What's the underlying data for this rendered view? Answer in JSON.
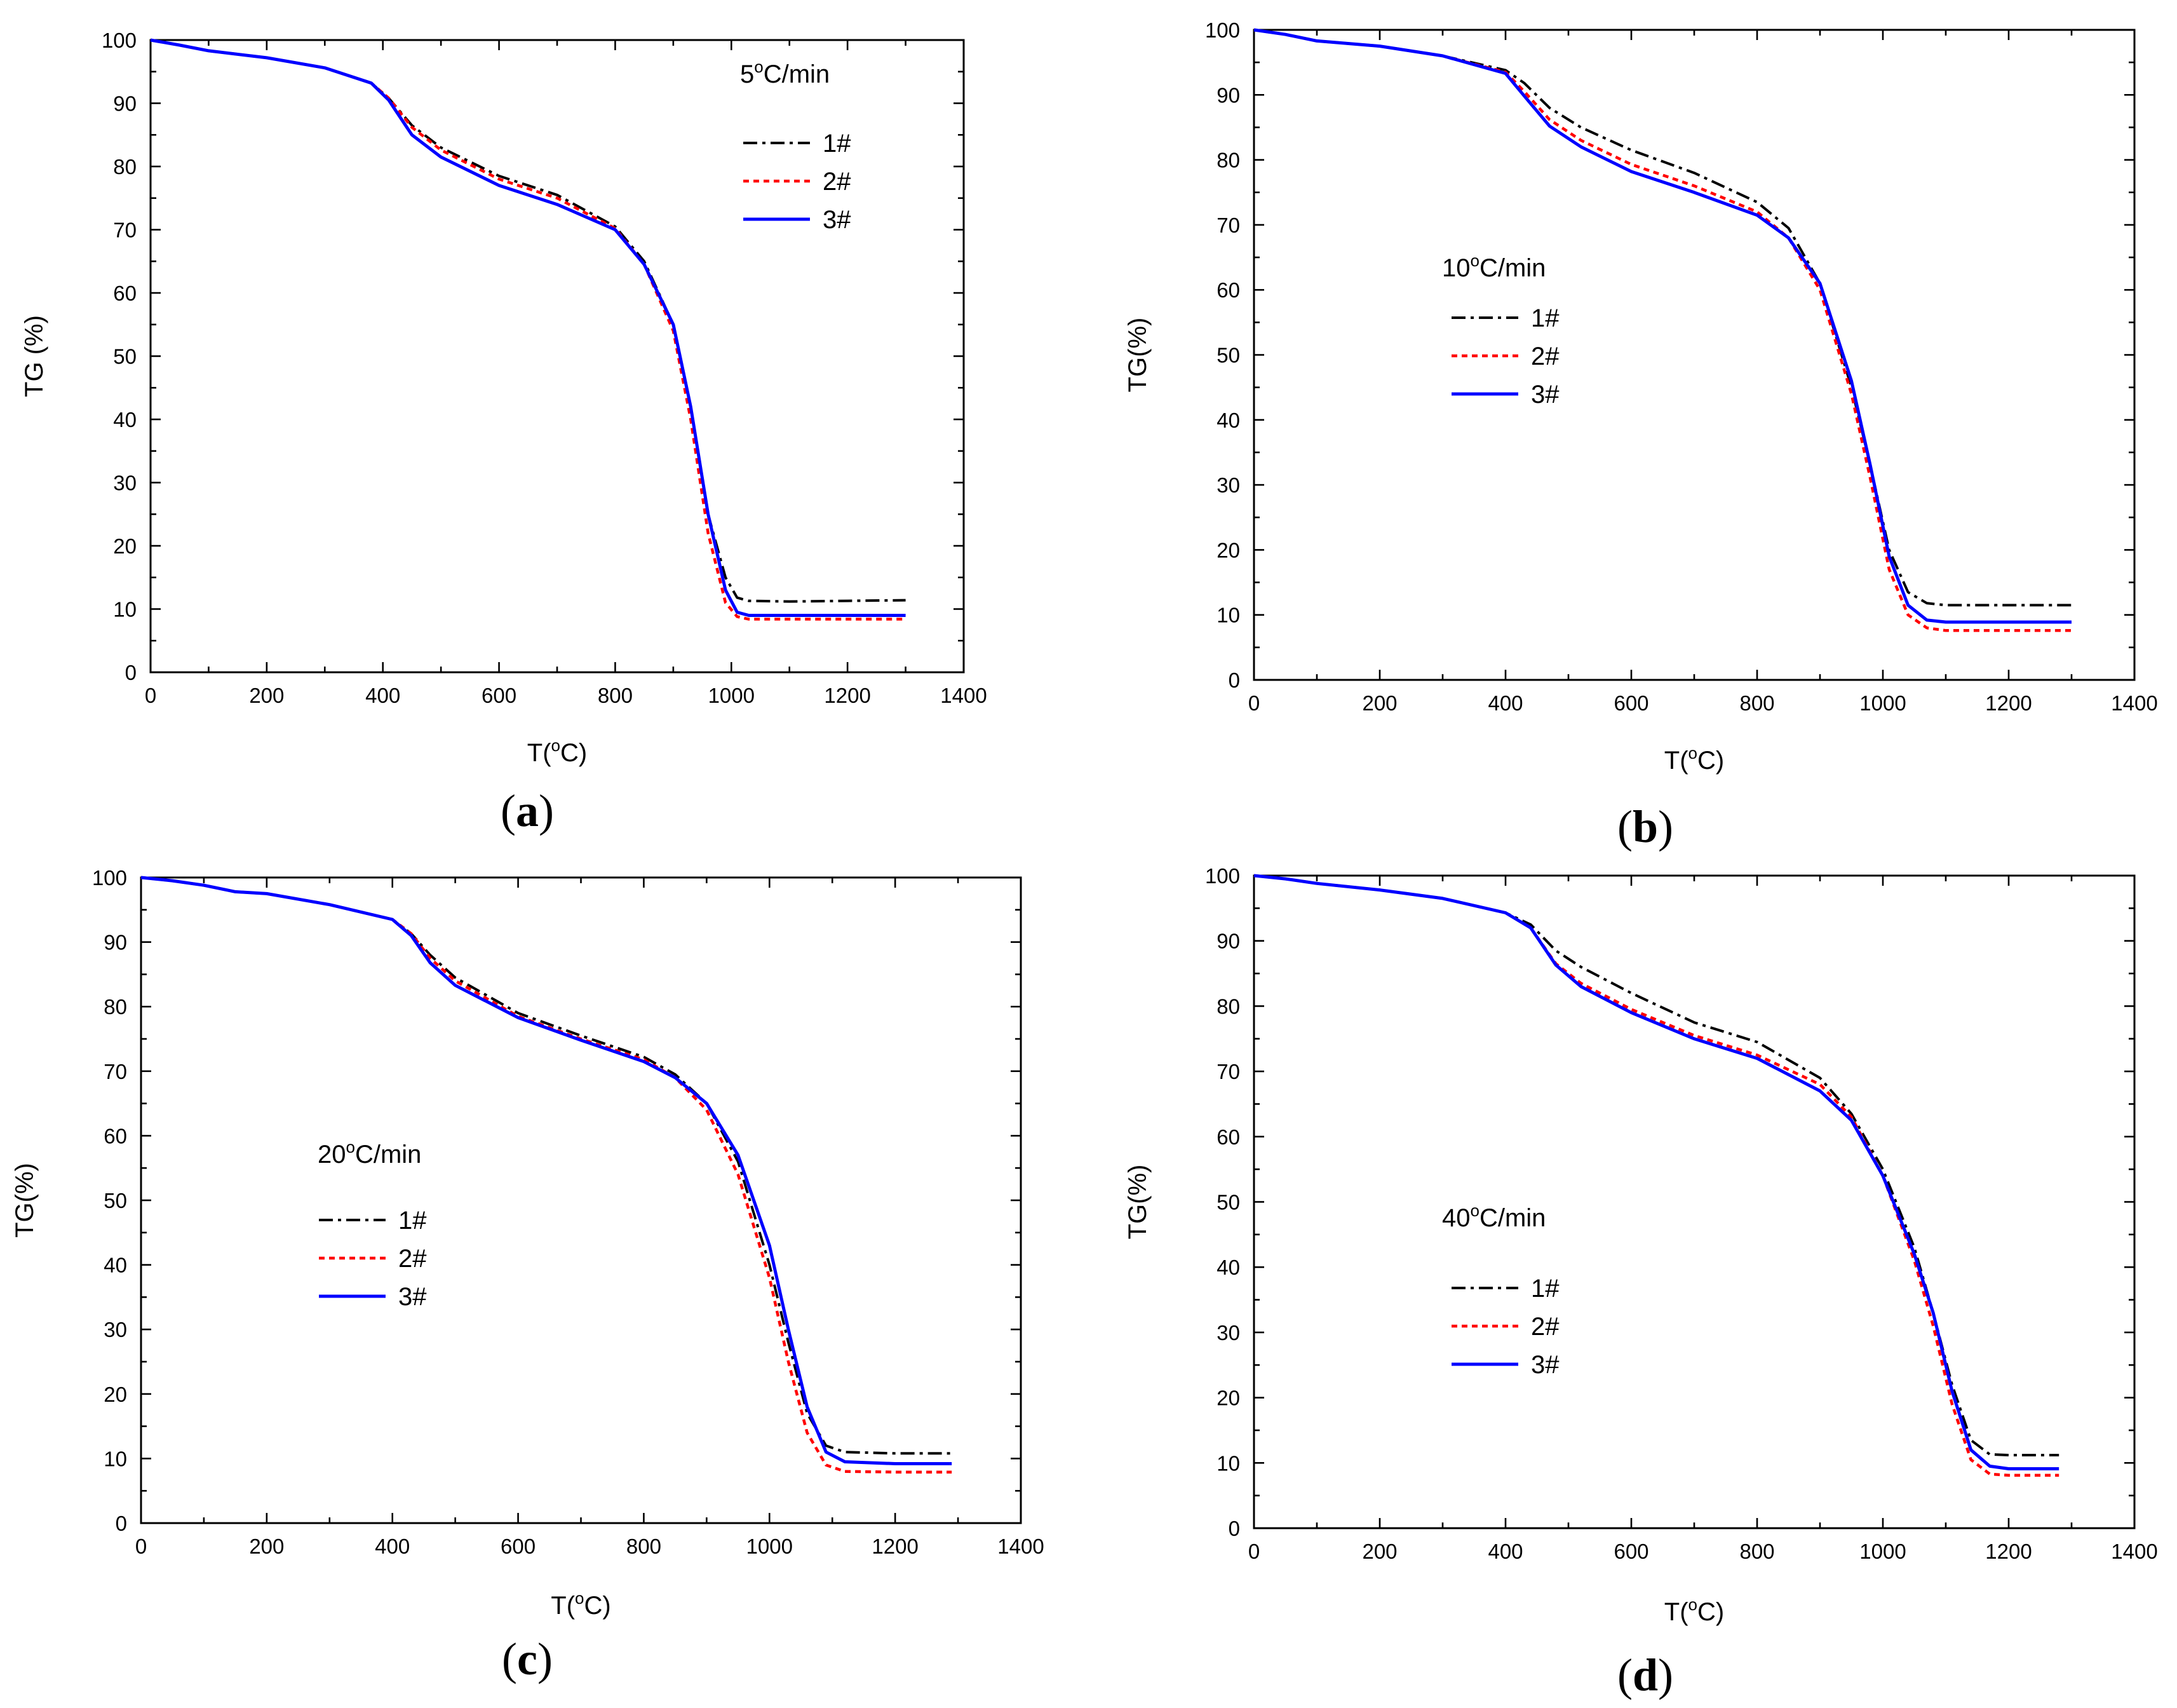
{
  "figure": {
    "axis_unit_label": "°C",
    "colors": {
      "1#": "#000000",
      "2#": "#ff0000",
      "3#": "#0000ff"
    }
  },
  "chart_data": [
    {
      "type": "line",
      "panel_label": "a",
      "annotation": "5°C/min",
      "annotation_parts": [
        "5",
        "o",
        "C/min"
      ],
      "xlabel": "T(°C)",
      "xlabel_parts": [
        "T(",
        "o",
        "C)"
      ],
      "ylabel": "TG (%)",
      "xlim": [
        0,
        1400
      ],
      "ylim": [
        0,
        100
      ],
      "xticks": [
        0,
        200,
        400,
        600,
        800,
        1000,
        1200,
        1400
      ],
      "yticks": [
        0,
        10,
        20,
        30,
        40,
        50,
        60,
        70,
        80,
        90,
        100
      ],
      "legend": [
        "1#",
        "2#",
        "3#"
      ],
      "legend_position": "upper-right",
      "series": [
        {
          "name": "1#",
          "style": "dash-dot",
          "color": "#000000",
          "x": [
            0,
            50,
            100,
            200,
            300,
            380,
            410,
            450,
            500,
            600,
            700,
            800,
            850,
            900,
            930,
            960,
            990,
            1010,
            1030,
            1100,
            1200,
            1300
          ],
          "y": [
            100,
            99.2,
            98.3,
            97.2,
            95.6,
            93.2,
            90.8,
            86.5,
            83,
            78.5,
            75.5,
            70.5,
            65,
            55,
            42,
            25,
            15,
            11.8,
            11.3,
            11.2,
            11.3,
            11.4
          ]
        },
        {
          "name": "2#",
          "style": "dotted",
          "color": "#ff0000",
          "x": [
            0,
            50,
            100,
            200,
            300,
            380,
            410,
            450,
            500,
            600,
            700,
            800,
            850,
            900,
            930,
            960,
            990,
            1010,
            1030,
            1100,
            1200,
            1300
          ],
          "y": [
            100,
            99.2,
            98.3,
            97.2,
            95.6,
            93.2,
            90.8,
            86.2,
            82.6,
            78,
            75,
            70.2,
            64.5,
            54,
            40,
            22,
            11,
            8.8,
            8.4,
            8.4,
            8.4,
            8.4
          ]
        },
        {
          "name": "3#",
          "style": "solid",
          "color": "#0000ff",
          "x": [
            0,
            50,
            100,
            200,
            300,
            380,
            410,
            450,
            500,
            600,
            700,
            800,
            850,
            900,
            930,
            960,
            990,
            1010,
            1030,
            1100,
            1200,
            1300
          ],
          "y": [
            100,
            99.2,
            98.3,
            97.2,
            95.6,
            93.2,
            90.5,
            85,
            81.5,
            77,
            74,
            70,
            64.5,
            55,
            42,
            25,
            13,
            9.5,
            9,
            9,
            9,
            9
          ]
        }
      ]
    },
    {
      "type": "line",
      "panel_label": "b",
      "annotation": "10°C/min",
      "annotation_parts": [
        "10",
        "o",
        "C/min"
      ],
      "xlabel": "T(°C)",
      "xlabel_parts": [
        "T(",
        "o",
        "C)"
      ],
      "ylabel": "TG(%)",
      "xlim": [
        0,
        1400
      ],
      "ylim": [
        0,
        100
      ],
      "xticks": [
        0,
        200,
        400,
        600,
        800,
        1000,
        1200,
        1400
      ],
      "yticks": [
        0,
        10,
        20,
        30,
        40,
        50,
        60,
        70,
        80,
        90,
        100
      ],
      "legend": [
        "1#",
        "2#",
        "3#"
      ],
      "legend_position": "center-left",
      "series": [
        {
          "name": "1#",
          "style": "dash-dot",
          "color": "#000000",
          "x": [
            0,
            50,
            100,
            200,
            300,
            400,
            430,
            470,
            520,
            600,
            700,
            800,
            850,
            900,
            950,
            980,
            1010,
            1040,
            1070,
            1100,
            1200,
            1300
          ],
          "y": [
            100,
            99.3,
            98.3,
            97.5,
            96,
            93.8,
            91.8,
            88,
            85,
            81.5,
            78,
            73.5,
            69.5,
            61,
            45,
            33,
            20,
            13.5,
            11.8,
            11.5,
            11.5,
            11.5
          ]
        },
        {
          "name": "2#",
          "style": "dotted",
          "color": "#ff0000",
          "x": [
            0,
            50,
            100,
            200,
            300,
            400,
            430,
            470,
            520,
            600,
            700,
            800,
            850,
            900,
            950,
            980,
            1010,
            1040,
            1070,
            1100,
            1200,
            1300
          ],
          "y": [
            100,
            99.3,
            98.3,
            97.5,
            96,
            93.5,
            90.5,
            86.2,
            83,
            79.3,
            76,
            72,
            68,
            60,
            44,
            31,
            17,
            10,
            8,
            7.6,
            7.6,
            7.6
          ]
        },
        {
          "name": "3#",
          "style": "solid",
          "color": "#0000ff",
          "x": [
            0,
            50,
            100,
            200,
            300,
            400,
            430,
            470,
            520,
            600,
            700,
            800,
            850,
            900,
            950,
            980,
            1010,
            1040,
            1070,
            1100,
            1200,
            1300
          ],
          "y": [
            100,
            99.3,
            98.3,
            97.5,
            96,
            93.3,
            89.8,
            85.2,
            82,
            78.2,
            75,
            71.5,
            68,
            61,
            46,
            33,
            19,
            11.5,
            9.2,
            8.9,
            8.9,
            8.9
          ]
        }
      ]
    },
    {
      "type": "line",
      "panel_label": "c",
      "annotation": "20°C/min",
      "annotation_parts": [
        "20",
        "o",
        "C/min"
      ],
      "xlabel": "T(°C)",
      "xlabel_parts": [
        "T(",
        "o",
        "C)"
      ],
      "ylabel": "TG(%)",
      "xlim": [
        0,
        1400
      ],
      "ylim": [
        0,
        100
      ],
      "xticks": [
        0,
        200,
        400,
        600,
        800,
        1000,
        1200,
        1400
      ],
      "yticks": [
        0,
        10,
        20,
        30,
        40,
        50,
        60,
        70,
        80,
        90,
        100
      ],
      "legend": [
        "1#",
        "2#",
        "3#"
      ],
      "legend_position": "center-left",
      "series": [
        {
          "name": "1#",
          "style": "dash-dot",
          "color": "#000000",
          "x": [
            0,
            50,
            100,
            150,
            200,
            300,
            400,
            430,
            460,
            500,
            600,
            700,
            800,
            850,
            900,
            950,
            1000,
            1030,
            1060,
            1090,
            1120,
            1200,
            1290
          ],
          "y": [
            100,
            99.5,
            98.8,
            97.8,
            97.5,
            95.8,
            93.5,
            91.3,
            88,
            84.5,
            79,
            75.5,
            72.2,
            69.5,
            65,
            56,
            40,
            28,
            17,
            12,
            11,
            10.8,
            10.8
          ]
        },
        {
          "name": "2#",
          "style": "dotted",
          "color": "#ff0000",
          "x": [
            0,
            50,
            100,
            150,
            200,
            300,
            400,
            430,
            460,
            500,
            600,
            700,
            800,
            850,
            900,
            950,
            1000,
            1030,
            1060,
            1090,
            1120,
            1200,
            1290
          ],
          "y": [
            100,
            99.5,
            98.8,
            97.8,
            97.5,
            95.8,
            93.5,
            91.3,
            87.5,
            84,
            78.5,
            75,
            71.8,
            69,
            64,
            54,
            38,
            25,
            14,
            9,
            8,
            7.9,
            7.9
          ]
        },
        {
          "name": "3#",
          "style": "solid",
          "color": "#0000ff",
          "x": [
            0,
            50,
            100,
            150,
            200,
            300,
            400,
            430,
            460,
            500,
            600,
            700,
            800,
            850,
            900,
            950,
            1000,
            1030,
            1060,
            1090,
            1120,
            1200,
            1290
          ],
          "y": [
            100,
            99.5,
            98.8,
            97.8,
            97.5,
            95.8,
            93.5,
            91,
            86.8,
            83.3,
            78.3,
            74.8,
            71.5,
            69,
            65,
            57,
            43,
            30,
            18,
            11,
            9.5,
            9.2,
            9.2
          ]
        }
      ]
    },
    {
      "type": "line",
      "panel_label": "d",
      "annotation": "40°C/min",
      "annotation_parts": [
        "40",
        "o",
        "C/min"
      ],
      "xlabel": "T(°C)",
      "xlabel_parts": [
        "T(",
        "o",
        "C)"
      ],
      "ylabel": "TG(%)",
      "xlim": [
        0,
        1400
      ],
      "ylim": [
        0,
        100
      ],
      "xticks": [
        0,
        200,
        400,
        600,
        800,
        1000,
        1200,
        1400
      ],
      "yticks": [
        0,
        10,
        20,
        30,
        40,
        50,
        60,
        70,
        80,
        90,
        100
      ],
      "legend": [
        "1#",
        "2#",
        "3#"
      ],
      "legend_position": "center-left",
      "series": [
        {
          "name": "1#",
          "style": "dash-dot",
          "color": "#000000",
          "x": [
            0,
            50,
            100,
            200,
            300,
            400,
            440,
            480,
            520,
            600,
            700,
            800,
            900,
            950,
            1000,
            1050,
            1080,
            1110,
            1140,
            1170,
            1200,
            1280
          ],
          "y": [
            100,
            99.5,
            98.8,
            97.8,
            96.5,
            94.3,
            92.5,
            88.5,
            86,
            82,
            77.5,
            74.5,
            69,
            63.5,
            55,
            43,
            33,
            22,
            13.5,
            11.3,
            11.2,
            11.2
          ]
        },
        {
          "name": "2#",
          "style": "dotted",
          "color": "#ff0000",
          "x": [
            0,
            50,
            100,
            200,
            300,
            400,
            440,
            480,
            520,
            600,
            700,
            800,
            900,
            950,
            1000,
            1050,
            1080,
            1110,
            1140,
            1170,
            1200,
            1280
          ],
          "y": [
            100,
            99.5,
            98.8,
            97.8,
            96.5,
            94.3,
            92,
            86.5,
            83.5,
            79.5,
            75.5,
            72.5,
            68,
            63,
            54,
            41,
            31,
            19,
            10.5,
            8.3,
            8.1,
            8.1
          ]
        },
        {
          "name": "3#",
          "style": "solid",
          "color": "#0000ff",
          "x": [
            0,
            50,
            100,
            200,
            300,
            400,
            440,
            480,
            520,
            600,
            700,
            800,
            900,
            950,
            1000,
            1050,
            1080,
            1110,
            1140,
            1170,
            1200,
            1280
          ],
          "y": [
            100,
            99.5,
            98.8,
            97.8,
            96.5,
            94.3,
            92,
            86.3,
            83,
            79,
            75,
            72,
            67,
            62.5,
            54,
            42,
            33,
            21,
            12,
            9.5,
            9.1,
            9.1
          ]
        }
      ]
    }
  ]
}
